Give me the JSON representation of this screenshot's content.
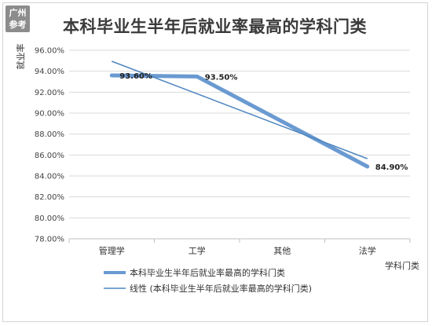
{
  "badge": {
    "line1": "广州",
    "line2": "参考"
  },
  "chart_data": {
    "type": "line",
    "title": "本科毕业生半年后就业率最高的学科门类",
    "xlabel": "学科门类",
    "ylabel": "就业率",
    "categories": [
      "管理学",
      "工学",
      "其他",
      "法学"
    ],
    "ylim": [
      78,
      96
    ],
    "yticks": [
      78,
      80,
      82,
      84,
      86,
      88,
      90,
      92,
      94,
      96
    ],
    "ytick_labels": [
      "78.00%",
      "80.00%",
      "82.00%",
      "84.00%",
      "86.00%",
      "88.00%",
      "90.00%",
      "92.00%",
      "94.00%",
      "96.00%"
    ],
    "grid": true,
    "legend_position": "bottom",
    "series": [
      {
        "name": "本科毕业生半年后就业率最高的学科门类",
        "values": [
          93.6,
          93.5,
          89.2,
          84.9
        ],
        "data_labels": [
          "93.60%",
          "93.50%",
          "",
          "84.90%"
        ],
        "color": "#6a9ad1"
      }
    ],
    "trendline": {
      "name": "线性 (本科毕业生半年后就业率最高的学科门类)",
      "values": [
        94.95,
        91.85,
        88.75,
        85.65
      ],
      "color": "#4f86c0"
    }
  }
}
